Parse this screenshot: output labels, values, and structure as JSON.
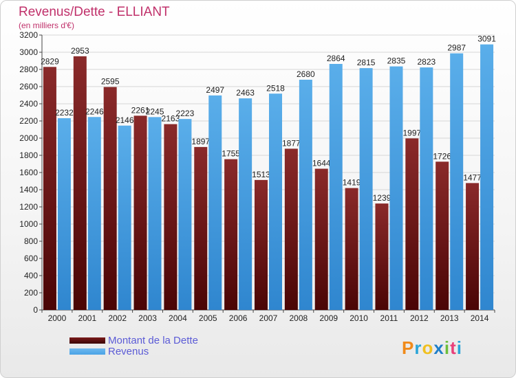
{
  "title": "Revenus/Dette - ELLIANT",
  "subtitle": "(en milliers d'€)",
  "logo": {
    "text": "Proxiti",
    "letters": [
      "P",
      "r",
      "o",
      "x",
      "i",
      "t",
      "i"
    ],
    "colors": [
      "#f08a1a",
      "#2aa5d8",
      "#f0c020",
      "#1f7fc8",
      "#6cbe3c",
      "#e8407a",
      "#2aa5d8"
    ]
  },
  "legend": [
    {
      "label": "Montant de la Dette",
      "color": "#7a1a1a"
    },
    {
      "label": "Revenus",
      "color": "#4aa3e6"
    }
  ],
  "chart_data": {
    "type": "bar",
    "categories": [
      "2000",
      "2001",
      "2002",
      "2003",
      "2004",
      "2005",
      "2006",
      "2007",
      "2008",
      "2009",
      "2010",
      "2011",
      "2012",
      "2013",
      "2014"
    ],
    "series": [
      {
        "name": "Montant de la Dette",
        "color": "#7a1a1a",
        "values": [
          2829,
          2953,
          2595,
          2261,
          2163,
          1897,
          1755,
          1513,
          1877,
          1644,
          1419,
          1239,
          1997,
          1726,
          1477
        ],
        "labels": [
          "2829",
          "2953",
          "2595",
          "2261",
          "2163",
          "1897",
          "1755",
          "1513",
          "1877",
          "1644",
          "1419",
          "1239",
          "1997",
          "1726",
          "1477"
        ]
      },
      {
        "name": "Revenus",
        "color": "#4aa3e6",
        "values": [
          2232,
          2246,
          2146,
          2245,
          2223,
          2497,
          2463,
          2518,
          2680,
          2864,
          2815,
          2835,
          2823,
          2987,
          3091
        ],
        "labels": [
          "2232",
          "2246",
          "2146",
          "2245",
          "2223",
          "2497",
          "2463",
          "2518",
          "2680",
          "2864",
          "2815",
          "2835",
          "2823",
          "2987",
          "3091"
        ]
      }
    ],
    "ylim": [
      0,
      3200
    ],
    "yticks": [
      0,
      200,
      400,
      600,
      800,
      1000,
      1200,
      1400,
      1600,
      1800,
      2000,
      2200,
      2400,
      2600,
      2800,
      3000,
      3200
    ],
    "grid": true,
    "legend_position": "bottom-left"
  }
}
